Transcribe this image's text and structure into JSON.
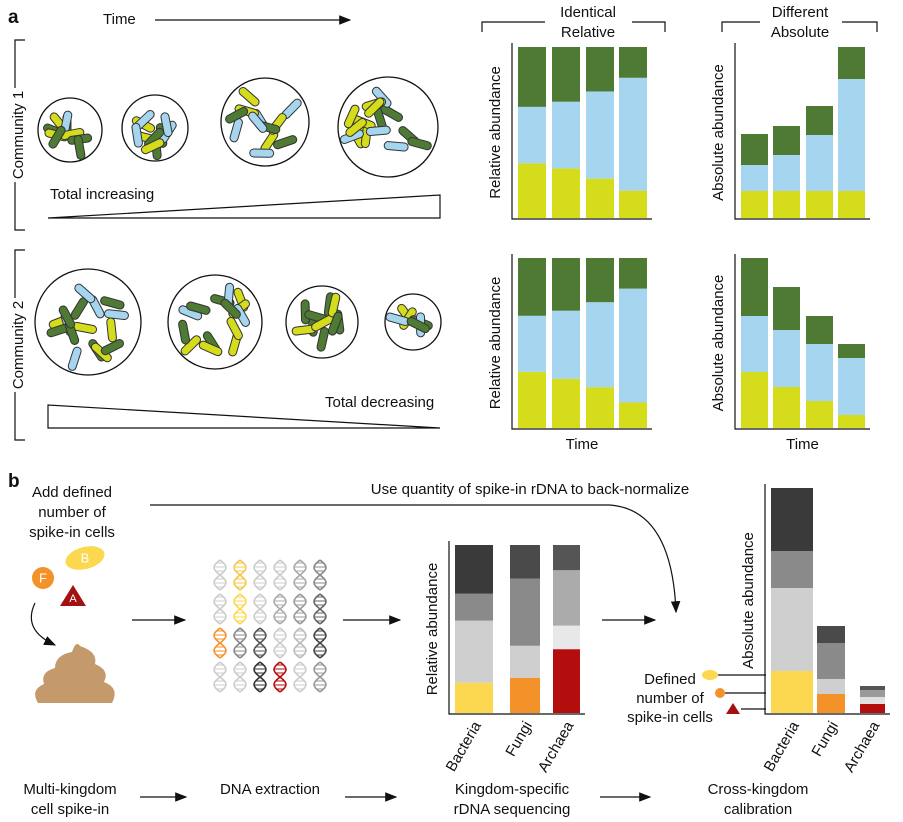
{
  "panel_a": {
    "label": "a",
    "time_label": "Time",
    "header_relative": [
      "Identical",
      "Relative"
    ],
    "header_absolute": [
      "Different",
      "Absolute"
    ],
    "communities": [
      {
        "label": "Community 1",
        "trend": "Total increasing"
      },
      {
        "label": "Community 2",
        "trend": "Total decreasing"
      }
    ]
  },
  "panel_b": {
    "label": "b",
    "add_cells": [
      "Add defined",
      "number of",
      "spike-in cells"
    ],
    "back_normalize": "Use quantity of spike-in rDNA to back-normalize",
    "spike_letters": [
      "F",
      "B",
      "A"
    ],
    "defined_cells": [
      "Defined",
      "number of",
      "spike-in cells"
    ],
    "steps": [
      [
        "Multi-kingdom",
        "cell spike-in"
      ],
      [
        "DNA extraction"
      ],
      [
        "Kingdom-specific",
        "rDNA sequencing"
      ],
      [
        "Cross-kingdom",
        "calibration"
      ]
    ]
  },
  "chart_data": [
    {
      "type": "bar",
      "stacked": true,
      "ylabel": "Relative abundance",
      "ylim": [
        0,
        100
      ],
      "series": [
        {
          "color": "#d4dc1c",
          "values": [
            32,
            29,
            23,
            16
          ]
        },
        {
          "color": "#a6d5f0",
          "values": [
            33,
            39,
            51,
            66
          ]
        },
        {
          "color": "#4e7a34",
          "values": [
            35,
            32,
            26,
            18
          ]
        }
      ]
    },
    {
      "type": "bar",
      "stacked": true,
      "ylabel": "Absolute abundance",
      "ylim": [
        0,
        171
      ],
      "series": [
        {
          "color": "#d4dc1c",
          "values": [
            27,
            27,
            27,
            27
          ]
        },
        {
          "color": "#a6d5f0",
          "values": [
            26,
            36,
            56,
            112
          ]
        },
        {
          "color": "#4e7a34",
          "values": [
            31,
            29,
            29,
            32
          ]
        }
      ]
    },
    {
      "type": "bar",
      "stacked": true,
      "ylabel": "Relative abundance",
      "xlabel": "Time",
      "ylim": [
        0,
        100
      ],
      "series": [
        {
          "color": "#d4dc1c",
          "values": [
            33,
            29,
            24,
            15
          ]
        },
        {
          "color": "#a6d5f0",
          "values": [
            33,
            40,
            50,
            67
          ]
        },
        {
          "color": "#4e7a34",
          "values": [
            34,
            31,
            26,
            18
          ]
        }
      ]
    },
    {
      "type": "bar",
      "stacked": true,
      "ylabel": "Absolute abundance",
      "xlabel": "Time",
      "ylim": [
        0,
        170
      ],
      "series": [
        {
          "color": "#d4dc1c",
          "values": [
            56,
            41,
            27,
            13
          ]
        },
        {
          "color": "#a6d5f0",
          "values": [
            56,
            57,
            57,
            57
          ]
        },
        {
          "color": "#4e7a34",
          "values": [
            58,
            43,
            28,
            14
          ]
        }
      ]
    },
    {
      "type": "bar",
      "stacked": true,
      "ylabel": "Relative abundance",
      "ylim": [
        0,
        100
      ],
      "categories": [
        "Bacteria",
        "Fungi",
        "Archaea"
      ],
      "series": [
        {
          "colors": [
            "#fbd850",
            "#f4922a",
            "#b40d0d"
          ],
          "values": [
            18,
            21,
            38
          ]
        },
        {
          "colors": [
            "#cfcfcf",
            "#cfcfcf",
            "#e8e8e8"
          ],
          "values": [
            37,
            19,
            14
          ]
        },
        {
          "colors": [
            "#8a8a8a",
            "#8a8a8a",
            "#ababab"
          ],
          "values": [
            16,
            40,
            33
          ]
        },
        {
          "colors": [
            "#3a3a3a",
            "#4a4a4a",
            "#555555"
          ],
          "values": [
            29,
            20,
            15
          ]
        }
      ]
    },
    {
      "type": "bar",
      "stacked": true,
      "ylabel": "Absolute abundance",
      "ylim": [
        0,
        225
      ],
      "categories": [
        "Bacteria",
        "Fungi",
        "Archaea"
      ],
      "series": [
        {
          "colors": [
            "#fbd850",
            "#f4922a",
            "#b40d0d"
          ],
          "values": [
            42,
            19,
            9
          ]
        },
        {
          "colors": [
            "#cfcfcf",
            "#cfcfcf",
            "#e0e0e0"
          ],
          "values": [
            83,
            15,
            7
          ]
        },
        {
          "colors": [
            "#8a8a8a",
            "#8a8a8a",
            "#9a9a9a"
          ],
          "values": [
            37,
            36,
            7
          ]
        },
        {
          "colors": [
            "#3a3a3a",
            "#4a4a4a",
            "#555555"
          ],
          "values": [
            63,
            17,
            4
          ]
        }
      ]
    }
  ]
}
